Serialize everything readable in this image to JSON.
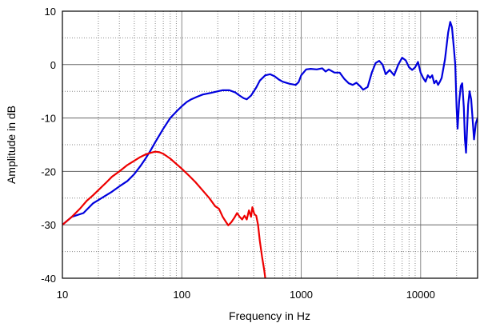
{
  "chart_data": {
    "type": "line",
    "title": "",
    "xlabel": "Frequency in Hz",
    "ylabel": "Amplitude in dB",
    "x_scale": "log",
    "xlim": [
      10,
      30000
    ],
    "ylim": [
      -40,
      10
    ],
    "x_ticks": [
      {
        "value": 10,
        "label": "10"
      },
      {
        "value": 100,
        "label": "100"
      },
      {
        "value": 1000,
        "label": "1000"
      },
      {
        "value": 10000,
        "label": "10000"
      }
    ],
    "y_ticks": [
      {
        "value": 10,
        "label": "10"
      },
      {
        "value": 0,
        "label": "0"
      },
      {
        "value": -10,
        "label": "-10"
      },
      {
        "value": -20,
        "label": "-20"
      },
      {
        "value": -30,
        "label": "-30"
      },
      {
        "value": -40,
        "label": "-40"
      }
    ],
    "grid": true,
    "legend": "none",
    "series": [
      {
        "color": "#0000dd",
        "points": [
          [
            10,
            -30
          ],
          [
            12,
            -28.5
          ],
          [
            15,
            -27.8
          ],
          [
            18,
            -26
          ],
          [
            22,
            -24.8
          ],
          [
            26,
            -23.8
          ],
          [
            30,
            -22.8
          ],
          [
            35,
            -21.8
          ],
          [
            40,
            -20.5
          ],
          [
            45,
            -19
          ],
          [
            50,
            -17.5
          ],
          [
            55,
            -16
          ],
          [
            60,
            -14.5
          ],
          [
            70,
            -12
          ],
          [
            80,
            -10
          ],
          [
            90,
            -8.8
          ],
          [
            100,
            -7.8
          ],
          [
            110,
            -7
          ],
          [
            120,
            -6.5
          ],
          [
            135,
            -6
          ],
          [
            150,
            -5.6
          ],
          [
            175,
            -5.3
          ],
          [
            200,
            -5
          ],
          [
            220,
            -4.8
          ],
          [
            250,
            -4.8
          ],
          [
            280,
            -5.2
          ],
          [
            300,
            -5.7
          ],
          [
            330,
            -6.3
          ],
          [
            350,
            -6.5
          ],
          [
            380,
            -5.8
          ],
          [
            420,
            -4.3
          ],
          [
            450,
            -3
          ],
          [
            500,
            -2
          ],
          [
            550,
            -1.8
          ],
          [
            600,
            -2.2
          ],
          [
            650,
            -2.8
          ],
          [
            700,
            -3.2
          ],
          [
            800,
            -3.6
          ],
          [
            900,
            -3.8
          ],
          [
            950,
            -3.3
          ],
          [
            1000,
            -2
          ],
          [
            1100,
            -0.9
          ],
          [
            1200,
            -0.8
          ],
          [
            1350,
            -0.9
          ],
          [
            1500,
            -0.7
          ],
          [
            1600,
            -1.3
          ],
          [
            1700,
            -0.9
          ],
          [
            1900,
            -1.5
          ],
          [
            2100,
            -1.5
          ],
          [
            2300,
            -2.7
          ],
          [
            2500,
            -3.5
          ],
          [
            2700,
            -3.8
          ],
          [
            2900,
            -3.4
          ],
          [
            3100,
            -4
          ],
          [
            3300,
            -4.7
          ],
          [
            3600,
            -4.2
          ],
          [
            3900,
            -1.5
          ],
          [
            4200,
            0.3
          ],
          [
            4500,
            0.7
          ],
          [
            4800,
            0
          ],
          [
            5100,
            -1.8
          ],
          [
            5500,
            -1
          ],
          [
            6000,
            -2
          ],
          [
            6500,
            0
          ],
          [
            7000,
            1.3
          ],
          [
            7500,
            0.8
          ],
          [
            8000,
            -0.5
          ],
          [
            8500,
            -1
          ],
          [
            9000,
            -0.5
          ],
          [
            9500,
            0.5
          ],
          [
            10000,
            -1.5
          ],
          [
            10500,
            -2.5
          ],
          [
            11000,
            -3.2
          ],
          [
            11500,
            -2
          ],
          [
            12000,
            -2.5
          ],
          [
            12500,
            -2
          ],
          [
            13000,
            -3.5
          ],
          [
            13500,
            -3
          ],
          [
            14000,
            -3.8
          ],
          [
            14500,
            -3.2
          ],
          [
            15000,
            -2.5
          ],
          [
            16000,
            1
          ],
          [
            17000,
            6
          ],
          [
            17700,
            8
          ],
          [
            18300,
            7
          ],
          [
            19000,
            3
          ],
          [
            19500,
            0
          ],
          [
            20000,
            -8
          ],
          [
            20400,
            -12
          ],
          [
            21000,
            -7
          ],
          [
            21700,
            -4
          ],
          [
            22300,
            -3.5
          ],
          [
            23000,
            -8
          ],
          [
            23500,
            -14
          ],
          [
            24000,
            -16.5
          ],
          [
            24500,
            -12
          ],
          [
            25000,
            -7.5
          ],
          [
            25700,
            -5
          ],
          [
            26500,
            -6.5
          ],
          [
            27200,
            -10
          ],
          [
            28000,
            -14
          ],
          [
            29000,
            -11
          ],
          [
            30000,
            -10
          ]
        ]
      },
      {
        "color": "#ee0000",
        "points": [
          [
            10,
            -30
          ],
          [
            12,
            -28.5
          ],
          [
            14,
            -27
          ],
          [
            16,
            -25.5
          ],
          [
            18,
            -24.5
          ],
          [
            20,
            -23.5
          ],
          [
            23,
            -22.2
          ],
          [
            26,
            -21
          ],
          [
            30,
            -20
          ],
          [
            35,
            -18.8
          ],
          [
            40,
            -18
          ],
          [
            45,
            -17.3
          ],
          [
            50,
            -16.8
          ],
          [
            55,
            -16.5
          ],
          [
            60,
            -16.3
          ],
          [
            65,
            -16.4
          ],
          [
            70,
            -16.7
          ],
          [
            80,
            -17.6
          ],
          [
            90,
            -18.6
          ],
          [
            100,
            -19.5
          ],
          [
            115,
            -20.8
          ],
          [
            130,
            -22
          ],
          [
            150,
            -23.6
          ],
          [
            170,
            -25
          ],
          [
            190,
            -26.5
          ],
          [
            205,
            -27
          ],
          [
            220,
            -28.5
          ],
          [
            235,
            -29.5
          ],
          [
            245,
            -30.1
          ],
          [
            260,
            -29.5
          ],
          [
            275,
            -28.7
          ],
          [
            290,
            -27.8
          ],
          [
            305,
            -28.5
          ],
          [
            320,
            -29
          ],
          [
            335,
            -28.3
          ],
          [
            350,
            -29
          ],
          [
            365,
            -27.3
          ],
          [
            380,
            -28.5
          ],
          [
            390,
            -26.7
          ],
          [
            405,
            -28
          ],
          [
            420,
            -28.3
          ],
          [
            435,
            -30
          ],
          [
            450,
            -33
          ],
          [
            470,
            -36
          ],
          [
            490,
            -38.5
          ],
          [
            500,
            -40
          ]
        ]
      }
    ]
  }
}
